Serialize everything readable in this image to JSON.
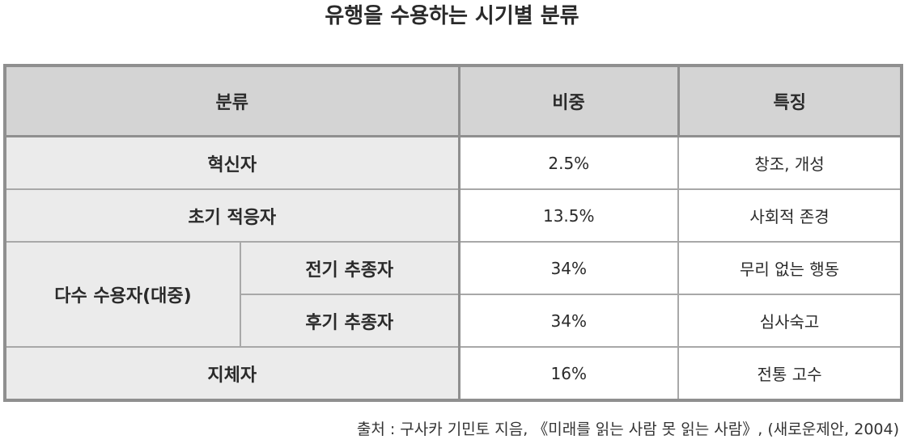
{
  "title": "유행을 수용하는 시기별 분류",
  "table": {
    "headers": [
      "분류",
      "비중",
      "특징"
    ],
    "rows": [
      {
        "category": "혁신자",
        "share": "2.5%",
        "feature": "창조, 개성"
      },
      {
        "category": "초기 적응자",
        "share": "13.5%",
        "feature": "사회적 존경"
      },
      {
        "category": "다수 수용자(대중)",
        "subcategory": "전기 추종자",
        "share": "34%",
        "feature": "무리 없는 행동"
      },
      {
        "category": "다수 수용자(대중)",
        "subcategory": "후기 추종자",
        "share": "34%",
        "feature": "심사숙고"
      },
      {
        "category": "지체자",
        "share": "16%",
        "feature": "전통 고수"
      }
    ]
  },
  "source": "출처 : 구사카 기민토 지음, 《미래를 읽는 사람 못 읽는 사람》, (새로운제안, 2004)"
}
